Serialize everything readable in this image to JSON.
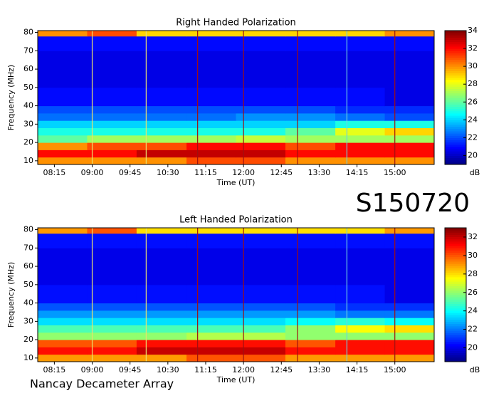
{
  "chart_data": [
    {
      "type": "heatmap",
      "title": "Right Handed Polarization",
      "xlabel": "Time (UT)",
      "ylabel": "Frequency (MHz)",
      "xlim": [
        7.92,
        15.78
      ],
      "xticks": [
        {
          "value": 8.25,
          "label": "08:15"
        },
        {
          "value": 9.0,
          "label": "09:00"
        },
        {
          "value": 9.75,
          "label": "09:45"
        },
        {
          "value": 10.5,
          "label": "10:30"
        },
        {
          "value": 11.25,
          "label": "11:15"
        },
        {
          "value": 12.0,
          "label": "12:00"
        },
        {
          "value": 12.75,
          "label": "12:45"
        },
        {
          "value": 13.5,
          "label": "13:30"
        },
        {
          "value": 14.25,
          "label": "14:15"
        },
        {
          "value": 15.0,
          "label": "15:00"
        }
      ],
      "ylim": [
        8,
        81
      ],
      "yticks": [
        10,
        20,
        30,
        40,
        50,
        60,
        70,
        80
      ],
      "x_bins": [
        7.92,
        8.9,
        9.88,
        10.87,
        11.85,
        12.83,
        13.82,
        14.8,
        15.78
      ],
      "y_bins": [
        8,
        12,
        16,
        20,
        24,
        28,
        32,
        36,
        40,
        50,
        60,
        70,
        78,
        81
      ],
      "z": [
        [
          30,
          30,
          30,
          31,
          31,
          30,
          30,
          30
        ],
        [
          32,
          32,
          33,
          33,
          33,
          32,
          32,
          32
        ],
        [
          30,
          31,
          31,
          32,
          32,
          31,
          32,
          32
        ],
        [
          26,
          27,
          27,
          27,
          27.5,
          27,
          27,
          27
        ],
        [
          25,
          25,
          25,
          25,
          25,
          26,
          28,
          29
        ],
        [
          24,
          24,
          24,
          24,
          24,
          24,
          25,
          25
        ],
        [
          22.5,
          22.5,
          22.5,
          22.5,
          23,
          23,
          22.5,
          22
        ],
        [
          22,
          22,
          22,
          22,
          22,
          22,
          21.5,
          21.5
        ],
        [
          21,
          21,
          21,
          21,
          21,
          21,
          21,
          20.5
        ],
        [
          20.5,
          20.5,
          20.5,
          20.5,
          20.5,
          20.5,
          20.5,
          20.5
        ],
        [
          20.5,
          20.5,
          20.5,
          20.5,
          20.5,
          20.5,
          20.5,
          20.5
        ],
        [
          21,
          21,
          21,
          21,
          21,
          21,
          21,
          21
        ],
        [
          30,
          31,
          29,
          29,
          29,
          29,
          29,
          30
        ]
      ],
      "clim": [
        19,
        34
      ],
      "cticks": [
        20,
        22,
        24,
        26,
        28,
        30,
        32,
        34
      ],
      "colorbar_label": "dB",
      "colormap": "jet",
      "vlines": [
        9.0,
        10.07,
        11.09,
        12.0,
        13.07,
        14.05,
        15.0
      ],
      "vline_colors": [
        "#e8e070",
        "#e8e070",
        "#a01010",
        "#a01010",
        "#a01010",
        "#70d0e0",
        "#a01010"
      ]
    },
    {
      "type": "heatmap",
      "title": "Left Handed Polarization",
      "xlabel": "Time (UT)",
      "ylabel": "Frequency (MHz)",
      "xlim": [
        7.92,
        15.78
      ],
      "xticks": [
        {
          "value": 8.25,
          "label": "08:15"
        },
        {
          "value": 9.0,
          "label": "09:00"
        },
        {
          "value": 9.75,
          "label": "09:45"
        },
        {
          "value": 10.5,
          "label": "10:30"
        },
        {
          "value": 11.25,
          "label": "11:15"
        },
        {
          "value": 12.0,
          "label": "12:00"
        },
        {
          "value": 12.75,
          "label": "12:45"
        },
        {
          "value": 13.5,
          "label": "13:30"
        },
        {
          "value": 14.25,
          "label": "14:15"
        },
        {
          "value": 15.0,
          "label": "15:00"
        }
      ],
      "ylim": [
        8,
        81
      ],
      "yticks": [
        10,
        20,
        30,
        40,
        50,
        60,
        70,
        80
      ],
      "x_bins": [
        7.92,
        8.9,
        9.88,
        10.87,
        11.85,
        12.83,
        13.82,
        14.8,
        15.78
      ],
      "y_bins": [
        8,
        12,
        16,
        20,
        24,
        28,
        32,
        36,
        40,
        50,
        60,
        70,
        78,
        81
      ],
      "z": [
        [
          29,
          29,
          29,
          30,
          30,
          29,
          29,
          29
        ],
        [
          31,
          31,
          32,
          32,
          32,
          31,
          31,
          31
        ],
        [
          30,
          30,
          31,
          31,
          31,
          30,
          31,
          31
        ],
        [
          26,
          26,
          26,
          26.5,
          26.5,
          26,
          26,
          26
        ],
        [
          25,
          25,
          25,
          25,
          25,
          26,
          27.5,
          28
        ],
        [
          23.5,
          23.5,
          23.5,
          23.5,
          23.5,
          24,
          24.5,
          24
        ],
        [
          22.5,
          22.5,
          22.5,
          22.5,
          22.5,
          22.5,
          22,
          22
        ],
        [
          21.5,
          21.5,
          21.5,
          21.5,
          21.5,
          21.5,
          21,
          21
        ],
        [
          20.5,
          20.5,
          20.5,
          20.5,
          20.5,
          20.5,
          20.5,
          20
        ],
        [
          20,
          20,
          20,
          20,
          20,
          20,
          20,
          20
        ],
        [
          20,
          20,
          20,
          20,
          20,
          20,
          20,
          20
        ],
        [
          20.5,
          20.5,
          20.5,
          20.5,
          20.5,
          20.5,
          20.5,
          20.5
        ],
        [
          29,
          30,
          28,
          28,
          28,
          28,
          28,
          29
        ]
      ],
      "clim": [
        18.5,
        33
      ],
      "cticks": [
        20,
        22,
        24,
        26,
        28,
        30,
        32
      ],
      "colorbar_label": "dB",
      "colormap": "jet",
      "vlines": [
        9.0,
        10.07,
        11.09,
        12.0,
        13.07,
        14.05,
        15.0
      ],
      "vline_colors": [
        "#e8e070",
        "#e8e070",
        "#a01010",
        "#a01010",
        "#a01010",
        "#70d0e0",
        "#a01010"
      ]
    }
  ],
  "label": "S150720",
  "credit": "Nancay Decameter Array"
}
